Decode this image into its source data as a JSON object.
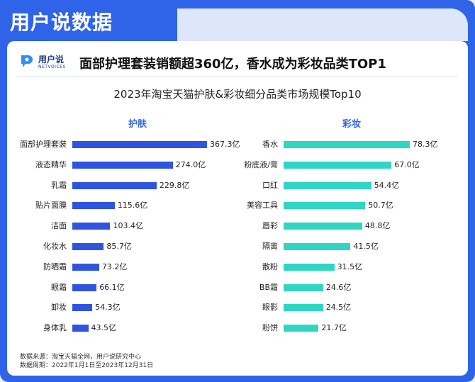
{
  "header": {
    "title": "用户说数据",
    "brand_name": "用户说",
    "brand_sub": "NETVOICES",
    "headline": "面部护理套装销额超360亿，香水成为彩妆品类TOP1"
  },
  "chart_data": [
    {
      "type": "bar",
      "title": "2023年淘宝天猫护肤&彩妆细分品类市场规模Top10",
      "group": "护肤",
      "categories": [
        "面部护理套装",
        "液态精华",
        "乳霜",
        "贴片面膜",
        "洁面",
        "化妆水",
        "防晒霜",
        "眼霜",
        "卸妆",
        "身体乳"
      ],
      "values": [
        367.3,
        274.0,
        229.8,
        115.6,
        103.4,
        85.7,
        73.2,
        66.1,
        54.3,
        43.5
      ],
      "value_labels": [
        "367.3亿",
        "274.0亿",
        "229.8亿",
        "115.6亿",
        "103.4亿",
        "85.7亿",
        "73.2亿",
        "66.1亿",
        "54.3亿",
        "43.5亿"
      ],
      "unit": "亿",
      "color": "#2f55e0"
    },
    {
      "type": "bar",
      "group": "彩妆",
      "categories": [
        "香水",
        "粉底液/膏",
        "口红",
        "美容工具",
        "唇彩",
        "隔离",
        "散粉",
        "BB霜",
        "眼影",
        "粉饼"
      ],
      "values": [
        78.3,
        67.0,
        54.4,
        50.7,
        48.8,
        41.5,
        31.5,
        24.6,
        24.5,
        21.7
      ],
      "value_labels": [
        "78.3亿",
        "67.0亿",
        "54.4亿",
        "50.7亿",
        "48.8亿",
        "41.5亿",
        "31.5亿",
        "24.6亿",
        "24.5亿",
        "21.7亿"
      ],
      "unit": "亿",
      "color": "#2fd6c4"
    }
  ],
  "footer": {
    "source": "数据来源：淘宝天猫全网，用户说研究中心",
    "period": "数据周期：2022年1月1日至2023年12月31日"
  }
}
